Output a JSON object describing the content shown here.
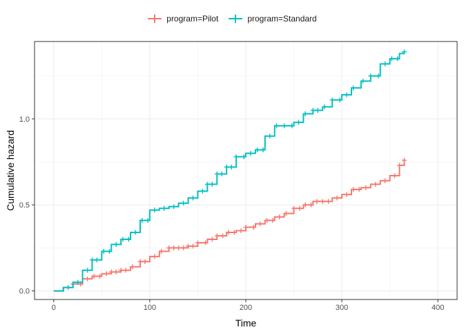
{
  "chart_data": {
    "type": "line",
    "xlabel": "Time",
    "ylabel": "Cumulative hazard",
    "xlim": [
      -20,
      420
    ],
    "ylim": [
      -0.05,
      1.45
    ],
    "x_ticks": [
      0,
      100,
      200,
      300,
      400
    ],
    "x_tick_labels": [
      "0",
      "100",
      "200",
      "300",
      "400"
    ],
    "y_ticks": [
      0.0,
      0.5,
      1.0
    ],
    "y_tick_labels": [
      "0.0",
      "0.5",
      "1.0"
    ],
    "grid": true,
    "legend_position": "top",
    "series": [
      {
        "name": "program=Pilot",
        "color": "#F8766D",
        "points": [
          [
            0,
            0
          ],
          [
            10,
            0.02
          ],
          [
            20,
            0.04
          ],
          [
            30,
            0.07
          ],
          [
            40,
            0.085
          ],
          [
            50,
            0.1
          ],
          [
            60,
            0.11
          ],
          [
            70,
            0.12
          ],
          [
            80,
            0.14
          ],
          [
            90,
            0.17
          ],
          [
            100,
            0.2
          ],
          [
            110,
            0.23
          ],
          [
            120,
            0.25
          ],
          [
            140,
            0.26
          ],
          [
            150,
            0.28
          ],
          [
            160,
            0.3
          ],
          [
            170,
            0.32
          ],
          [
            180,
            0.34
          ],
          [
            190,
            0.35
          ],
          [
            200,
            0.37
          ],
          [
            210,
            0.39
          ],
          [
            220,
            0.41
          ],
          [
            230,
            0.43
          ],
          [
            240,
            0.45
          ],
          [
            250,
            0.48
          ],
          [
            260,
            0.5
          ],
          [
            270,
            0.52
          ],
          [
            280,
            0.52
          ],
          [
            290,
            0.54
          ],
          [
            300,
            0.56
          ],
          [
            310,
            0.59
          ],
          [
            320,
            0.6
          ],
          [
            330,
            0.62
          ],
          [
            340,
            0.64
          ],
          [
            350,
            0.67
          ],
          [
            360,
            0.73
          ],
          [
            365,
            0.76
          ]
        ],
        "censor_x": [
          20,
          28,
          35,
          42,
          48,
          55,
          60,
          65,
          70,
          75,
          82,
          90,
          95,
          105,
          112,
          120,
          125,
          130,
          135,
          140,
          145,
          150,
          158,
          165,
          170,
          176,
          182,
          188,
          195,
          200,
          208,
          215,
          222,
          228,
          235,
          242,
          250,
          256,
          262,
          268,
          274,
          280,
          286,
          295,
          305,
          312,
          318,
          325,
          335,
          345,
          355,
          360,
          365
        ]
      },
      {
        "name": "program=Standard",
        "color": "#00BFC4",
        "points": [
          [
            0,
            0
          ],
          [
            10,
            0.02
          ],
          [
            20,
            0.05
          ],
          [
            30,
            0.12
          ],
          [
            40,
            0.18
          ],
          [
            50,
            0.23
          ],
          [
            60,
            0.27
          ],
          [
            70,
            0.3
          ],
          [
            80,
            0.34
          ],
          [
            90,
            0.41
          ],
          [
            100,
            0.47
          ],
          [
            110,
            0.48
          ],
          [
            120,
            0.49
          ],
          [
            130,
            0.51
          ],
          [
            140,
            0.54
          ],
          [
            150,
            0.58
          ],
          [
            160,
            0.62
          ],
          [
            170,
            0.68
          ],
          [
            180,
            0.72
          ],
          [
            190,
            0.78
          ],
          [
            200,
            0.8
          ],
          [
            210,
            0.82
          ],
          [
            220,
            0.9
          ],
          [
            230,
            0.96
          ],
          [
            240,
            0.96
          ],
          [
            250,
            0.98
          ],
          [
            260,
            1.03
          ],
          [
            270,
            1.05
          ],
          [
            280,
            1.07
          ],
          [
            290,
            1.11
          ],
          [
            300,
            1.14
          ],
          [
            310,
            1.18
          ],
          [
            320,
            1.22
          ],
          [
            330,
            1.25
          ],
          [
            340,
            1.32
          ],
          [
            350,
            1.35
          ],
          [
            360,
            1.38
          ],
          [
            365,
            1.39
          ]
        ],
        "censor_x": [
          15,
          25,
          35,
          40,
          45,
          52,
          58,
          65,
          72,
          78,
          85,
          92,
          98,
          105,
          115,
          125,
          135,
          145,
          155,
          160,
          165,
          170,
          175,
          180,
          185,
          190,
          198,
          205,
          212,
          218,
          225,
          232,
          240,
          248,
          255,
          262,
          270,
          275,
          282,
          290,
          298,
          305,
          312,
          322,
          330,
          338,
          345,
          352,
          358,
          365
        ]
      }
    ]
  }
}
